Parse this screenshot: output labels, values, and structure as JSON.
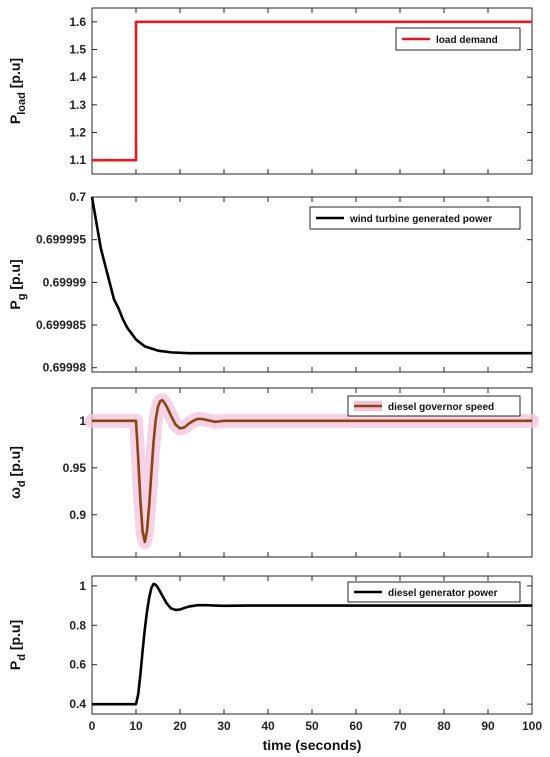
{
  "chart_data": [
    {
      "type": "line",
      "ylabel": "P",
      "ylabel_sub": "load",
      "ylabel_unit": " [p.u]",
      "xlim": [
        0,
        100
      ],
      "ylim": [
        1.05,
        1.65
      ],
      "yticks": [
        1.1,
        1.2,
        1.3,
        1.4,
        1.5,
        1.6
      ],
      "ytick_labels": [
        "1.1",
        "1.2",
        "1.3",
        "1.4",
        "1.5",
        "1.6"
      ],
      "legend_position": "top-right",
      "series": [
        {
          "name": "load demand",
          "color": "#e41a1c",
          "x": [
            0,
            10,
            10,
            100
          ],
          "y": [
            1.1,
            1.1,
            1.6,
            1.6
          ]
        }
      ]
    },
    {
      "type": "line",
      "ylabel": "P",
      "ylabel_sub": "g",
      "ylabel_unit": " [p.u]",
      "xlim": [
        0,
        100
      ],
      "ylim": [
        0.6999795,
        0.7
      ],
      "yticks": [
        0.69998,
        0.699985,
        0.69999,
        0.699995,
        0.7
      ],
      "ytick_labels": [
        "0.69998",
        "0.699985",
        "0.69999",
        "0.699995",
        "0.7"
      ],
      "legend_position": "top-right",
      "series": [
        {
          "name": "wind turbine generated power",
          "color": "#000000",
          "x": [
            0,
            1,
            2,
            3,
            4,
            5,
            6,
            7,
            8,
            10,
            12,
            15,
            18,
            22,
            26,
            30,
            40,
            50,
            60,
            70,
            80,
            90,
            100
          ],
          "y": [
            0.7,
            0.699997,
            0.699994,
            0.699992,
            0.69999,
            0.699988,
            0.699987,
            0.6999857,
            0.6999847,
            0.6999833,
            0.6999825,
            0.699982,
            0.6999818,
            0.6999817,
            0.6999817,
            0.6999817,
            0.6999817,
            0.6999817,
            0.6999817,
            0.6999817,
            0.6999817,
            0.6999817,
            0.6999817
          ]
        }
      ]
    },
    {
      "type": "line",
      "ylabel": "ω",
      "ylabel_sub": "d",
      "ylabel_unit": " [p.u]",
      "xlim": [
        0,
        100
      ],
      "ylim": [
        0.855,
        1.035
      ],
      "yticks": [
        0.9,
        0.95,
        1.0
      ],
      "ytick_labels": [
        "0.9",
        "0.95",
        "1"
      ],
      "legend_position": "top-right",
      "series": [
        {
          "name": "diesel governor speed",
          "color": "#8b4513",
          "glow": "#f4c2dd",
          "x": [
            0,
            10,
            10.5,
            11,
            11.5,
            12,
            12.5,
            13,
            13.5,
            14,
            14.5,
            15,
            15.5,
            16,
            16.5,
            17,
            18,
            19,
            20,
            21,
            22,
            23,
            24,
            25,
            26,
            28,
            30,
            35,
            40,
            100
          ],
          "y": [
            1.0,
            1.0,
            0.96,
            0.915,
            0.882,
            0.871,
            0.883,
            0.91,
            0.945,
            0.978,
            1.002,
            1.015,
            1.021,
            1.022,
            1.019,
            1.015,
            1.005,
            0.996,
            0.992,
            0.993,
            0.997,
            1.0,
            1.002,
            1.002,
            1.001,
            0.999,
            1.0,
            1.0,
            1.0,
            1.0
          ]
        }
      ]
    },
    {
      "type": "line",
      "ylabel": "P",
      "ylabel_sub": "d",
      "ylabel_unit": " [p.u]",
      "xlabel": "time (seconds)",
      "xlim": [
        0,
        100
      ],
      "ylim": [
        0.35,
        1.05
      ],
      "xticks": [
        0,
        10,
        20,
        30,
        40,
        50,
        60,
        70,
        80,
        90,
        100
      ],
      "xtick_labels": [
        "0",
        "10",
        "20",
        "30",
        "40",
        "50",
        "60",
        "70",
        "80",
        "90",
        "100"
      ],
      "yticks": [
        0.4,
        0.6,
        0.8,
        1.0
      ],
      "ytick_labels": [
        "0.4",
        "0.6",
        "0.8",
        "1"
      ],
      "legend_position": "top-right",
      "series": [
        {
          "name": "diesel generator power",
          "color": "#000000",
          "x": [
            0,
            10,
            10.5,
            11,
            11.5,
            12,
            12.5,
            13,
            13.5,
            14,
            14.5,
            15,
            16,
            17,
            18,
            19,
            20,
            21,
            22,
            24,
            26,
            28,
            30,
            35,
            40,
            100
          ],
          "y": [
            0.4,
            0.4,
            0.45,
            0.55,
            0.67,
            0.78,
            0.87,
            0.94,
            0.99,
            1.01,
            1.005,
            0.99,
            0.95,
            0.91,
            0.885,
            0.878,
            0.88,
            0.888,
            0.895,
            0.902,
            0.902,
            0.9,
            0.899,
            0.9,
            0.9,
            0.9
          ]
        }
      ]
    }
  ]
}
